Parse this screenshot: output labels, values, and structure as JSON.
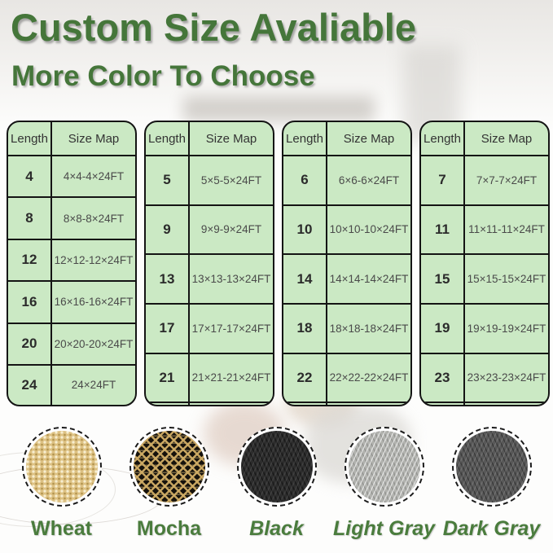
{
  "header": {
    "title": "Custom Size Avaliable",
    "subtitle": "More Color To Choose"
  },
  "colors": {
    "heading_green": "#45763a",
    "label_green": "#4a7c3d",
    "table_background": "#cbe9c4",
    "table_border": "#141414"
  },
  "tables": [
    {
      "headers": [
        "Length",
        "Size Map"
      ],
      "rows": [
        [
          "4",
          "4×4-4×24FT"
        ],
        [
          "8",
          "8×8-8×24FT"
        ],
        [
          "12",
          "12×12-12×24FT"
        ],
        [
          "16",
          "16×16-16×24FT"
        ],
        [
          "20",
          "20×20-20×24FT"
        ],
        [
          "24",
          "24×24FT"
        ]
      ]
    },
    {
      "headers": [
        "Length",
        "Size Map"
      ],
      "rows": [
        [
          "5",
          "5×5-5×24FT"
        ],
        [
          "9",
          "9×9-9×24FT"
        ],
        [
          "13",
          "13×13-13×24FT"
        ],
        [
          "17",
          "17×17-17×24FT"
        ],
        [
          "21",
          "21×21-21×24FT"
        ],
        [
          "",
          ""
        ]
      ]
    },
    {
      "headers": [
        "Length",
        "Size Map"
      ],
      "rows": [
        [
          "6",
          "6×6-6×24FT"
        ],
        [
          "10",
          "10×10-10×24FT"
        ],
        [
          "14",
          "14×14-14×24FT"
        ],
        [
          "18",
          "18×18-18×24FT"
        ],
        [
          "22",
          "22×22-22×24FT"
        ],
        [
          "",
          ""
        ]
      ]
    },
    {
      "headers": [
        "Length",
        "Size Map"
      ],
      "rows": [
        [
          "7",
          "7×7-7×24FT"
        ],
        [
          "11",
          "11×11-11×24FT"
        ],
        [
          "15",
          "15×15-15×24FT"
        ],
        [
          "19",
          "19×19-19×24FT"
        ],
        [
          "23",
          "23×23-23×24FT"
        ],
        [
          "",
          ""
        ]
      ]
    }
  ],
  "swatches": [
    {
      "name": "Wheat",
      "fabric_color": "#ddc183"
    },
    {
      "name": "Mocha",
      "fabric_color": "#16120c"
    },
    {
      "name": "Black",
      "fabric_color": "#2d2d2d"
    },
    {
      "name": "Light Gray",
      "fabric_color": "#b2b3af"
    },
    {
      "name": "Dark Gray",
      "fabric_color": "#585858"
    }
  ]
}
